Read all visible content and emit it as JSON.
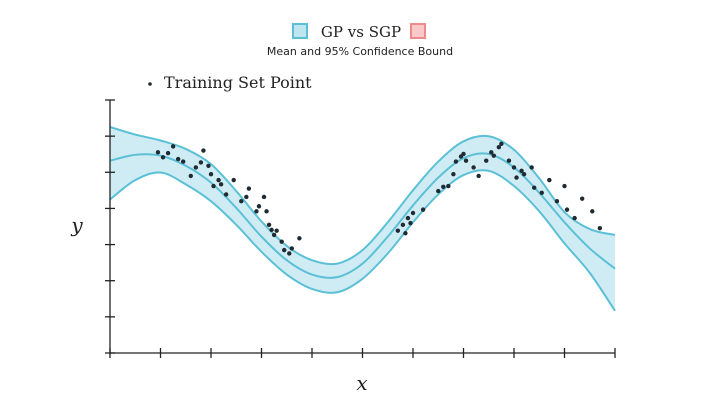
{
  "chart_data": {
    "type": "line",
    "title": "GP vs SGP",
    "subtitle": "Mean and 95% Confidence Bound",
    "xlabel": "x",
    "ylabel": "y",
    "legend_entries": [
      "Training Set Point"
    ],
    "colors": {
      "gp": "#5bc0d6",
      "gp_fill": "#bfe6f0",
      "sgp": "#f08a8a",
      "sgp_fill": "#f9c9c9",
      "points": "#1f2a33",
      "axis": "#222222"
    },
    "x_ticks": 10,
    "y_ticks": 7,
    "xlim": [
      0,
      10
    ],
    "ylim": [
      -1.5,
      1.5
    ],
    "series": [
      {
        "name": "GP",
        "x": [
          0,
          0.5,
          1,
          1.5,
          2,
          2.5,
          3,
          3.5,
          4,
          4.5,
          5,
          5.5,
          6,
          6.5,
          7,
          7.5,
          8,
          8.5,
          9,
          9.5,
          10
        ],
        "mean": [
          0.78,
          0.85,
          0.84,
          0.72,
          0.52,
          0.22,
          -0.12,
          -0.4,
          -0.57,
          -0.6,
          -0.44,
          -0.12,
          0.25,
          0.58,
          0.81,
          0.86,
          0.7,
          0.4,
          0.05,
          -0.26,
          -0.5
        ],
        "upper": [
          1.18,
          1.09,
          1.02,
          0.92,
          0.74,
          0.42,
          0.06,
          -0.23,
          -0.4,
          -0.44,
          -0.28,
          0.05,
          0.43,
          0.77,
          1.01,
          1.07,
          0.91,
          0.57,
          0.17,
          -0.03,
          -0.1
        ],
        "lower": [
          0.32,
          0.55,
          0.64,
          0.5,
          0.3,
          0.02,
          -0.3,
          -0.57,
          -0.74,
          -0.78,
          -0.62,
          -0.32,
          0.05,
          0.38,
          0.61,
          0.66,
          0.48,
          0.18,
          -0.2,
          -0.55,
          -1.0
        ]
      }
    ],
    "points": [
      [
        0.95,
        0.88
      ],
      [
        1.05,
        0.82
      ],
      [
        1.15,
        0.87
      ],
      [
        1.25,
        0.95
      ],
      [
        1.35,
        0.8
      ],
      [
        1.45,
        0.77
      ],
      [
        1.6,
        0.6
      ],
      [
        1.7,
        0.7
      ],
      [
        1.8,
        0.76
      ],
      [
        1.85,
        0.9
      ],
      [
        1.95,
        0.72
      ],
      [
        2.0,
        0.62
      ],
      [
        2.05,
        0.48
      ],
      [
        2.15,
        0.55
      ],
      [
        2.2,
        0.5
      ],
      [
        2.3,
        0.38
      ],
      [
        2.45,
        0.55
      ],
      [
        2.6,
        0.3
      ],
      [
        2.7,
        0.35
      ],
      [
        2.75,
        0.45
      ],
      [
        2.9,
        0.18
      ],
      [
        2.95,
        0.24
      ],
      [
        3.05,
        0.35
      ],
      [
        3.1,
        0.18
      ],
      [
        3.15,
        0.02
      ],
      [
        3.2,
        -0.04
      ],
      [
        3.25,
        -0.1
      ],
      [
        3.3,
        -0.05
      ],
      [
        3.4,
        -0.18
      ],
      [
        3.45,
        -0.28
      ],
      [
        3.55,
        -0.32
      ],
      [
        3.6,
        -0.26
      ],
      [
        3.75,
        -0.14
      ],
      [
        5.7,
        -0.05
      ],
      [
        5.8,
        0.02
      ],
      [
        5.85,
        -0.08
      ],
      [
        5.9,
        0.1
      ],
      [
        5.95,
        0.04
      ],
      [
        6.0,
        0.16
      ],
      [
        6.2,
        0.2
      ],
      [
        6.5,
        0.42
      ],
      [
        6.6,
        0.47
      ],
      [
        6.7,
        0.48
      ],
      [
        6.8,
        0.62
      ],
      [
        6.85,
        0.77
      ],
      [
        6.95,
        0.83
      ],
      [
        7.0,
        0.86
      ],
      [
        7.05,
        0.78
      ],
      [
        7.2,
        0.7
      ],
      [
        7.3,
        0.6
      ],
      [
        7.45,
        0.78
      ],
      [
        7.55,
        0.88
      ],
      [
        7.6,
        0.84
      ],
      [
        7.7,
        0.94
      ],
      [
        7.75,
        0.98
      ],
      [
        7.9,
        0.78
      ],
      [
        8.0,
        0.7
      ],
      [
        8.05,
        0.58
      ],
      [
        8.15,
        0.66
      ],
      [
        8.2,
        0.62
      ],
      [
        8.35,
        0.7
      ],
      [
        8.4,
        0.46
      ],
      [
        8.55,
        0.4
      ],
      [
        8.7,
        0.55
      ],
      [
        8.85,
        0.3
      ],
      [
        9.0,
        0.48
      ],
      [
        9.05,
        0.2
      ],
      [
        9.2,
        0.1
      ],
      [
        9.35,
        0.33
      ],
      [
        9.55,
        0.18
      ],
      [
        9.7,
        -0.02
      ]
    ]
  }
}
